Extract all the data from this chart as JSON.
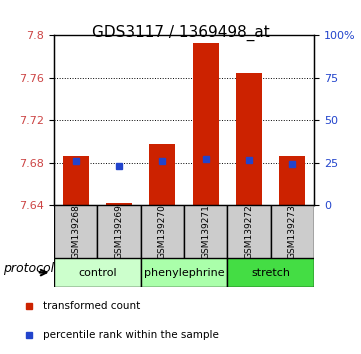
{
  "title": "GDS3117 / 1369498_at",
  "samples": [
    "GSM139268",
    "GSM139269",
    "GSM139270",
    "GSM139271",
    "GSM139272",
    "GSM139273"
  ],
  "bar_bottoms": [
    7.64,
    7.64,
    7.64,
    7.64,
    7.64,
    7.64
  ],
  "bar_tops": [
    7.686,
    7.642,
    7.698,
    7.793,
    7.765,
    7.686
  ],
  "blue_markers": [
    7.682,
    7.677,
    7.682,
    7.684,
    7.683,
    7.679
  ],
  "ylim_left": [
    7.64,
    7.8
  ],
  "yticks_left": [
    7.64,
    7.68,
    7.72,
    7.76,
    7.8
  ],
  "ylim_right": [
    0,
    100
  ],
  "yticks_right": [
    0,
    25,
    50,
    75,
    100
  ],
  "yticklabels_right": [
    "0",
    "25",
    "50",
    "75",
    "100%"
  ],
  "bar_color": "#cc2200",
  "blue_color": "#2244cc",
  "bar_width": 0.6,
  "groups": [
    {
      "label": "control",
      "samples": [
        0,
        1
      ],
      "color": "#ccffcc"
    },
    {
      "label": "phenylephrine",
      "samples": [
        2,
        3
      ],
      "color": "#aaffaa"
    },
    {
      "label": "stretch",
      "samples": [
        4,
        5
      ],
      "color": "#44dd44"
    }
  ],
  "protocol_label": "protocol",
  "legend_items": [
    {
      "color": "#cc2200",
      "label": "transformed count"
    },
    {
      "color": "#2244cc",
      "label": "percentile rank within the sample"
    }
  ],
  "tick_label_color_left": "#cc4444",
  "tick_label_color_right": "#2244cc"
}
